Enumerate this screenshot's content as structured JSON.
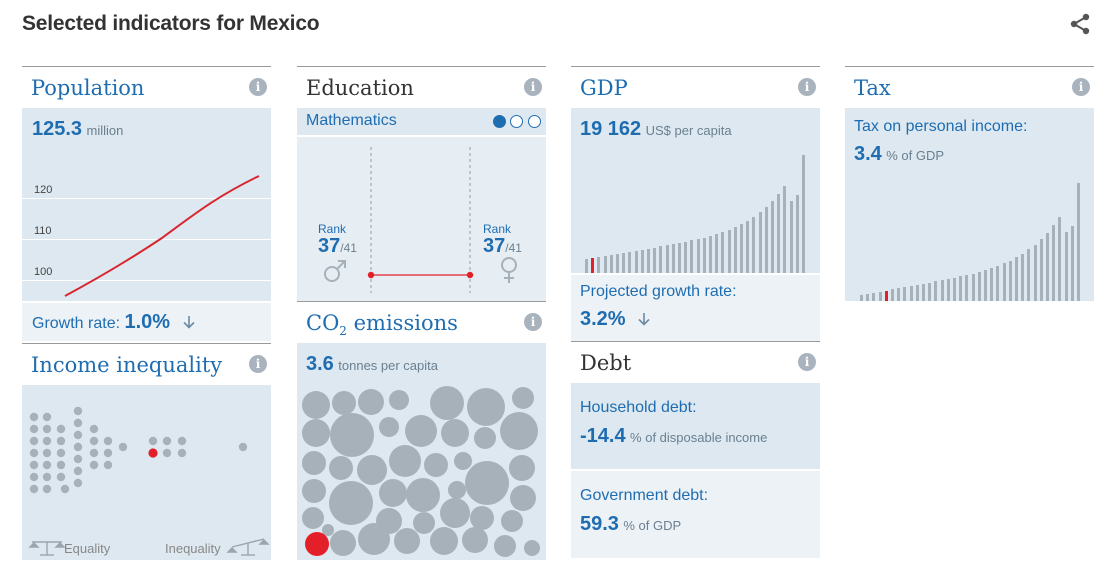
{
  "page": {
    "title": "Selected indicators for Mexico"
  },
  "population": {
    "title": "Population",
    "value": "125.3",
    "unit": "million",
    "ticks": [
      "120",
      "110",
      "100"
    ],
    "growth_label": "Growth rate:",
    "growth_value": "1.0%",
    "trend": "down"
  },
  "education": {
    "title": "Education",
    "subject": "Mathematics",
    "pager": {
      "pages": 3,
      "active": 1
    },
    "male": {
      "rank_label": "Rank",
      "rank": "37",
      "of": "/41"
    },
    "female": {
      "rank_label": "Rank",
      "rank": "37",
      "of": "/41"
    }
  },
  "co2": {
    "title_prefix": "CO",
    "title_sub": "2",
    "title_suffix": " emissions",
    "value": "3.6",
    "unit": "tonnes per capita"
  },
  "gdp": {
    "title": "GDP",
    "value": "19 162",
    "unit": "US$ per capita",
    "projected_label": "Projected growth rate:",
    "projected_value": "3.2%",
    "trend": "down"
  },
  "debt": {
    "title": "Debt",
    "household_label": "Household debt:",
    "household_value": "-14.4",
    "household_unit": "% of disposable income",
    "government_label": "Government debt:",
    "government_value": "59.3",
    "government_unit": "% of GDP"
  },
  "tax": {
    "title": "Tax",
    "label": "Tax on personal income:",
    "value": "3.4",
    "unit": "% of GDP"
  },
  "inequality": {
    "title": "Income inequality",
    "left_label": "Equality",
    "right_label": "Inequality"
  },
  "colors": {
    "accent": "#1f6db1",
    "highlight": "#e3202a",
    "panel": "#dde8f0",
    "bar": "#a6b1ba"
  }
}
